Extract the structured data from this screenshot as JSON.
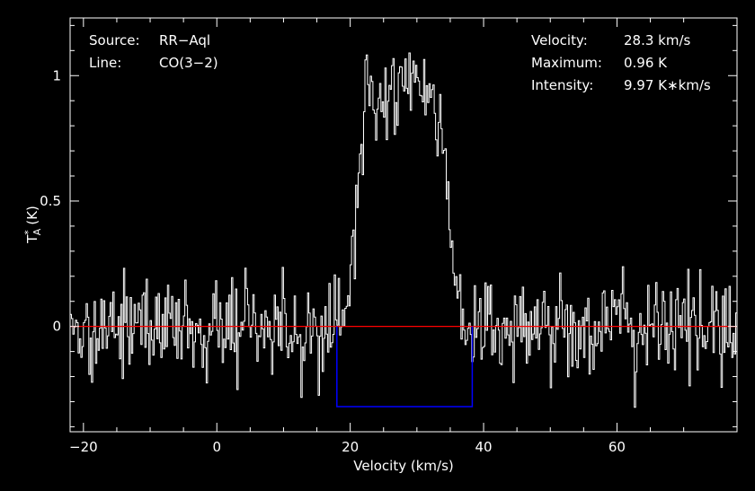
{
  "chart_data": {
    "type": "line",
    "xlabel": "Velocity (km/s)",
    "ylabel": {
      "base": "T",
      "sub": "A",
      "sup": "*",
      "unit": "(K)"
    },
    "xlim": [
      -22,
      78
    ],
    "ylim": [
      -0.42,
      1.23
    ],
    "xticks": [
      -20,
      0,
      20,
      40,
      60
    ],
    "yticks": [
      0,
      0.5,
      1
    ],
    "xtick_labels": [
      "−20",
      "0",
      "20",
      "40",
      "60"
    ],
    "ytick_labels": [
      "0",
      "0.5",
      "1"
    ],
    "grid": false,
    "annotations_left": [
      {
        "key": "Source:",
        "value": "RR−Aql"
      },
      {
        "key": "Line:",
        "value": "CO(3−2)"
      }
    ],
    "annotations_right": [
      {
        "key": "Velocity:",
        "value": "28.3 km/s"
      },
      {
        "key": "Maximum:",
        "value": "0.96 K"
      },
      {
        "key": "Intensity:",
        "value": "9.97 K∗km/s"
      }
    ],
    "baseline": {
      "y": 0,
      "color": "#ff0000"
    },
    "window": {
      "x_start": 18.0,
      "x_end": 38.3,
      "y": -0.32,
      "color": "#0000ff"
    },
    "series": [
      {
        "color": "#ffffff",
        "x_start": -22,
        "x_end": 78,
        "step": 0.2,
        "profile": {
          "center": 28.3,
          "peak": 0.96,
          "rise_start": 19.3,
          "rise_end": 22.5,
          "fall_start": 33.0,
          "fall_end": 37.0
        },
        "noise_rms": 0.1
      }
    ]
  }
}
